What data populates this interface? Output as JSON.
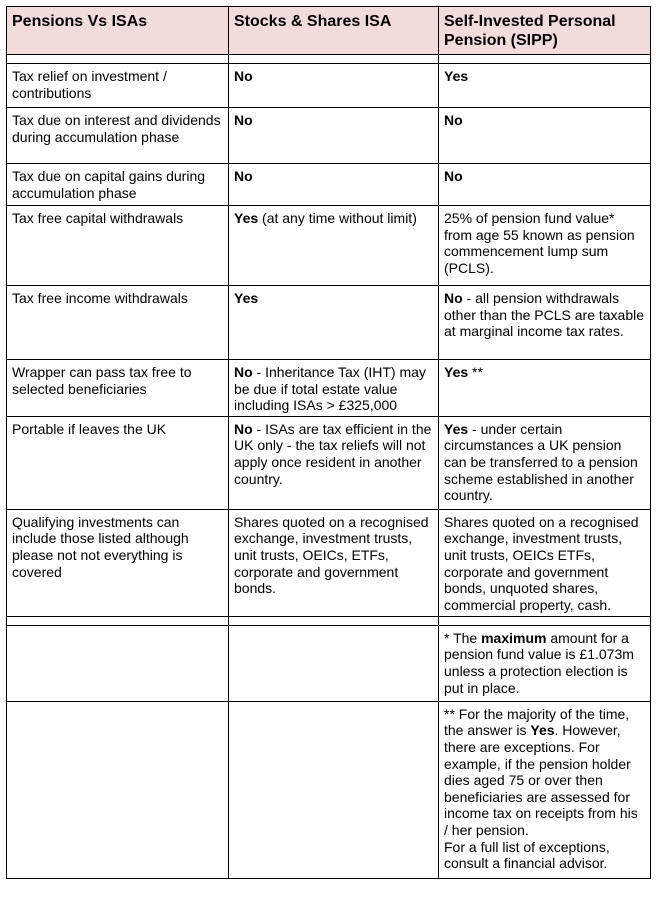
{
  "header": [
    "Pensions Vs ISAs",
    "Stocks & Shares ISA",
    "Self-Invested Personal Pension (SIPP)"
  ],
  "rows": [
    [
      [
        {
          "t": "Tax relief on investment / contributions"
        }
      ],
      [
        {
          "t": "No",
          "b": true
        }
      ],
      [
        {
          "t": "Yes",
          "b": true
        }
      ]
    ],
    [
      [
        {
          "t": "Tax due on interest and dividends during accumulation phase"
        }
      ],
      [
        {
          "t": "No",
          "b": true
        }
      ],
      [
        {
          "t": "No",
          "b": true
        }
      ]
    ],
    [
      [
        {
          "t": "Tax due on capital gains during accumulation phase"
        }
      ],
      [
        {
          "t": "No",
          "b": true
        }
      ],
      [
        {
          "t": "No",
          "b": true
        }
      ]
    ],
    [
      [
        {
          "t": "Tax free capital withdrawals"
        }
      ],
      [
        {
          "t": "Yes",
          "b": true
        },
        {
          "t": " (at any time without limit)"
        }
      ],
      [
        {
          "t": "25% of pension fund value* from age 55 known as pension commencement lump sum (PCLS)."
        }
      ]
    ],
    [
      [
        {
          "t": "Tax free income withdrawals"
        }
      ],
      [
        {
          "t": "Yes",
          "b": true
        }
      ],
      [
        {
          "t": "No",
          "b": true
        },
        {
          "t": " - all pension withdrawals other than the PCLS are taxable at marginal income tax rates."
        }
      ]
    ],
    [
      [
        {
          "t": "Wrapper can pass tax free to selected beneficiaries"
        }
      ],
      [
        {
          "t": "No",
          "b": true
        },
        {
          "t": " - Inheritance Tax (IHT) may be due if total estate value including ISAs > £325,000"
        }
      ],
      [
        {
          "t": "Yes",
          "b": true
        },
        {
          "t": " **"
        }
      ]
    ],
    [
      [
        {
          "t": "Portable if leaves the UK"
        }
      ],
      [
        {
          "t": "No",
          "b": true
        },
        {
          "t": " - ISAs are tax efficient in the UK only - the tax reliefs will not apply once resident in another country."
        }
      ],
      [
        {
          "t": "Yes",
          "b": true
        },
        {
          "t": " - under certain circumstances a UK pension can be transferred to a pension scheme established in another country."
        }
      ]
    ],
    [
      [
        {
          "t": "Qualifying investments can include those listed although please not not everything is covered"
        }
      ],
      [
        {
          "t": "Shares quoted on a recognised exchange, investment trusts, unit trusts, OEICs, ETFs, corporate and government bonds."
        }
      ],
      [
        {
          "t": "Shares quoted on a recognised exchange, investment trusts, unit trusts, OEICs ETFs, corporate and government bonds, unquoted shares, commercial property, cash."
        }
      ]
    ]
  ],
  "notes": [
    [
      [],
      [],
      [
        {
          "t": "* The "
        },
        {
          "t": "maximum",
          "b": true
        },
        {
          "t": " amount for a pension fund value is £1.073m unless a protection election is put in place."
        }
      ]
    ],
    [
      [],
      [],
      [
        {
          "t": "** For the majority of the time, the answer is "
        },
        {
          "t": "Yes",
          "b": true
        },
        {
          "t": ". However, there are exceptions. For example, if the pension holder dies aged 75 or over then beneficiaries are assessed for income tax on receipts from his / her pension."
        },
        {
          "t": "\n"
        },
        {
          "t": "For a full list of exceptions, consult a financial advisor."
        }
      ]
    ]
  ]
}
